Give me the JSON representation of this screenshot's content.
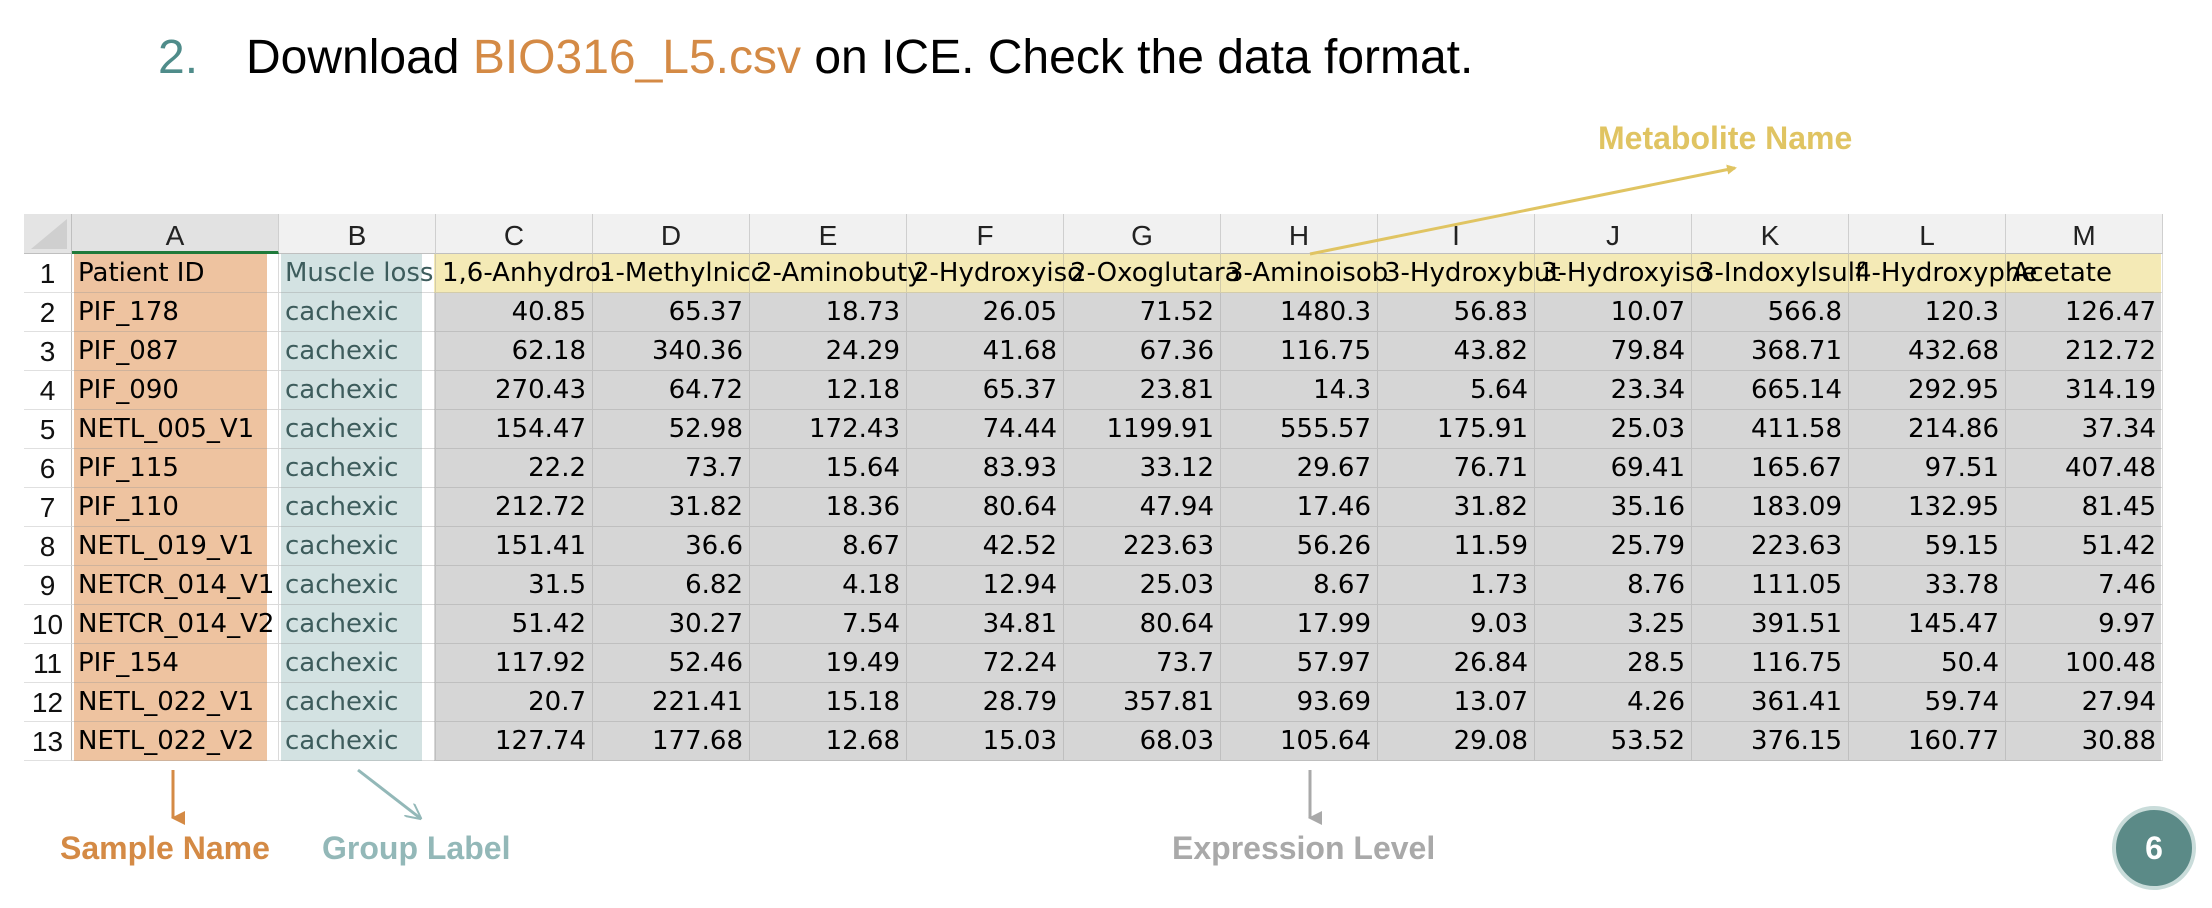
{
  "heading": {
    "number": "2.",
    "prefix": "Download ",
    "filename": "BIO316_L5.csv",
    "suffix": " on ICE. Check the data format."
  },
  "sheet": {
    "active_column": "A",
    "columns": [
      "A",
      "B",
      "C",
      "D",
      "E",
      "F",
      "G",
      "H",
      "I",
      "J",
      "K",
      "L",
      "M"
    ],
    "header_row": [
      "Patient ID",
      "Muscle loss",
      "1,6-Anhydro-",
      "1-Methylnicc",
      "2-Aminobuty",
      "2-Hydroxyiso",
      "2-Oxoglutara",
      "3-Aminoisob",
      "3-Hydroxybut",
      "3-Hydroxyiso",
      "3-Indoxylsulf",
      "4-Hydroxyphe",
      "Acetate"
    ],
    "row_numbers": [
      "1",
      "2",
      "3",
      "4",
      "5",
      "6",
      "7",
      "8",
      "9",
      "10",
      "11",
      "12",
      "13"
    ],
    "rows": [
      [
        "PIF_178",
        "cachexic",
        "40.85",
        "65.37",
        "18.73",
        "26.05",
        "71.52",
        "1480.3",
        "56.83",
        "10.07",
        "566.8",
        "120.3",
        "126.47"
      ],
      [
        "PIF_087",
        "cachexic",
        "62.18",
        "340.36",
        "24.29",
        "41.68",
        "67.36",
        "116.75",
        "43.82",
        "79.84",
        "368.71",
        "432.68",
        "212.72"
      ],
      [
        "PIF_090",
        "cachexic",
        "270.43",
        "64.72",
        "12.18",
        "65.37",
        "23.81",
        "14.3",
        "5.64",
        "23.34",
        "665.14",
        "292.95",
        "314.19"
      ],
      [
        "NETL_005_V1",
        "cachexic",
        "154.47",
        "52.98",
        "172.43",
        "74.44",
        "1199.91",
        "555.57",
        "175.91",
        "25.03",
        "411.58",
        "214.86",
        "37.34"
      ],
      [
        "PIF_115",
        "cachexic",
        "22.2",
        "73.7",
        "15.64",
        "83.93",
        "33.12",
        "29.67",
        "76.71",
        "69.41",
        "165.67",
        "97.51",
        "407.48"
      ],
      [
        "PIF_110",
        "cachexic",
        "212.72",
        "31.82",
        "18.36",
        "80.64",
        "47.94",
        "17.46",
        "31.82",
        "35.16",
        "183.09",
        "132.95",
        "81.45"
      ],
      [
        "NETL_019_V1",
        "cachexic",
        "151.41",
        "36.6",
        "8.67",
        "42.52",
        "223.63",
        "56.26",
        "11.59",
        "25.79",
        "223.63",
        "59.15",
        "51.42"
      ],
      [
        "NETCR_014_V1",
        "cachexic",
        "31.5",
        "6.82",
        "4.18",
        "12.94",
        "25.03",
        "8.67",
        "1.73",
        "8.76",
        "111.05",
        "33.78",
        "7.46"
      ],
      [
        "NETCR_014_V2",
        "cachexic",
        "51.42",
        "30.27",
        "7.54",
        "34.81",
        "80.64",
        "17.99",
        "9.03",
        "3.25",
        "391.51",
        "145.47",
        "9.97"
      ],
      [
        "PIF_154",
        "cachexic",
        "117.92",
        "52.46",
        "19.49",
        "72.24",
        "73.7",
        "57.97",
        "26.84",
        "28.5",
        "116.75",
        "50.4",
        "100.48"
      ],
      [
        "NETL_022_V1",
        "cachexic",
        "20.7",
        "221.41",
        "15.18",
        "28.79",
        "357.81",
        "93.69",
        "13.07",
        "4.26",
        "361.41",
        "59.74",
        "27.94"
      ],
      [
        "NETL_022_V2",
        "cachexic",
        "127.74",
        "177.68",
        "12.68",
        "15.03",
        "68.03",
        "105.64",
        "29.08",
        "53.52",
        "376.15",
        "160.77",
        "30.88"
      ]
    ]
  },
  "annotations": {
    "metabolite": "Metabolite Name",
    "sample": "Sample Name",
    "group": "Group Label",
    "expression": "Expression Level"
  },
  "colors": {
    "sample": "#d48a45",
    "sample_fill": "#eec3a0",
    "group": "#93b8b8",
    "group_fill": "#d3e2e2",
    "metabolite": "#e0c462",
    "metabolite_fill": "#f4eab6",
    "expression_fill": "#d6d6d6",
    "expression": "#a9a9a9",
    "accent": "#4f8c8a"
  },
  "page_number": "6"
}
